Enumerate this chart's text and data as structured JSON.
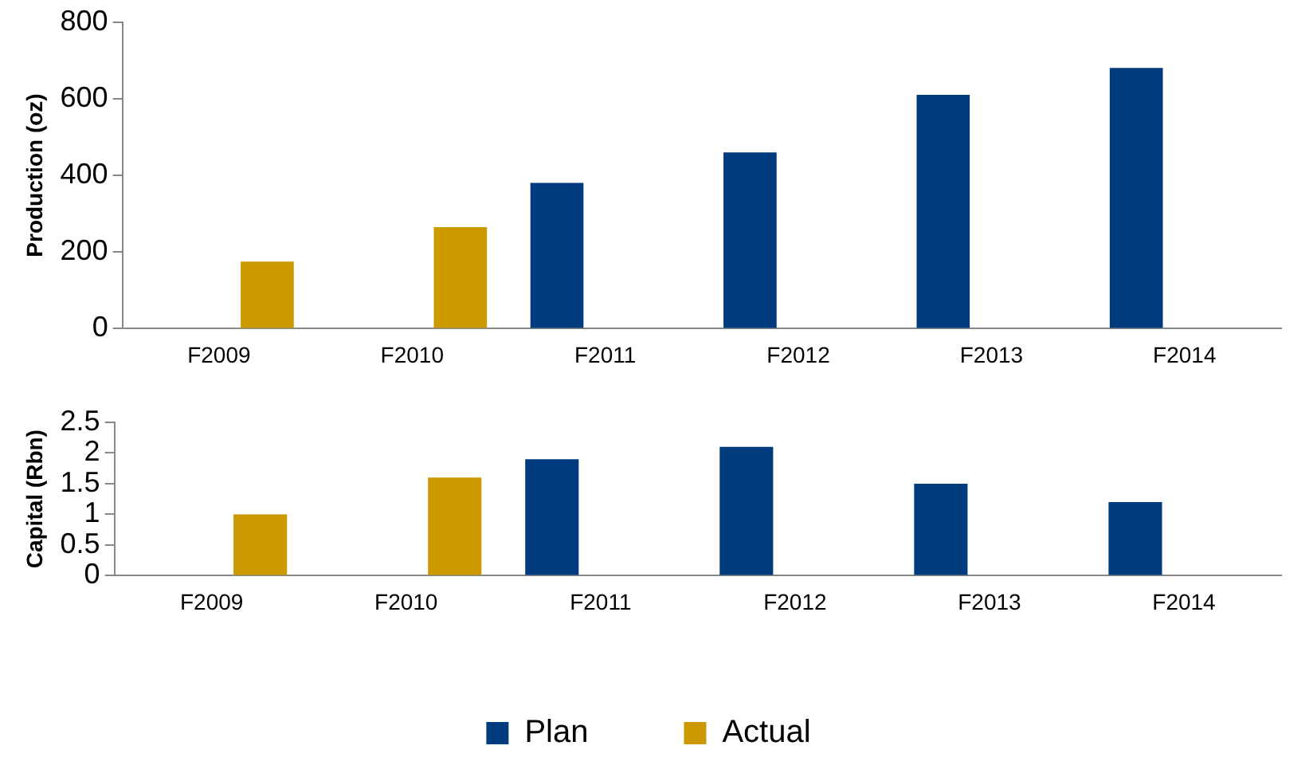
{
  "chart_data": [
    {
      "type": "bar",
      "ylabel": "Production (oz)",
      "categories": [
        "F2009",
        "F2010",
        "F2011",
        "F2012",
        "F2013",
        "F2014"
      ],
      "series": [
        {
          "color": "#003c7d",
          "values": [
            null,
            null,
            380,
            460,
            610,
            680
          ]
        },
        {
          "color": "#cc9900",
          "values": [
            175,
            265,
            null,
            null,
            null,
            null
          ]
        }
      ],
      "ylim": [
        0,
        800
      ],
      "yticks": [
        0,
        200,
        400,
        600,
        800
      ],
      "grid": false,
      "legend": false
    },
    {
      "type": "bar",
      "ylabel": "Capital (Rbn)",
      "categories": [
        "F2009",
        "F2010",
        "F2011",
        "F2012",
        "F2013",
        "F2014"
      ],
      "series": [
        {
          "name": "Plan",
          "color": "#003c7d",
          "values": [
            null,
            null,
            1.9,
            2.1,
            1.5,
            1.2
          ]
        },
        {
          "name": "Actual",
          "color": "#cc9900",
          "values": [
            1.0,
            1.6,
            null,
            null,
            null,
            null
          ]
        }
      ],
      "ylim": [
        0,
        2.5
      ],
      "yticks": [
        0,
        0.5,
        1,
        1.5,
        2,
        2.5
      ],
      "grid": false,
      "legend": "bottom"
    }
  ]
}
